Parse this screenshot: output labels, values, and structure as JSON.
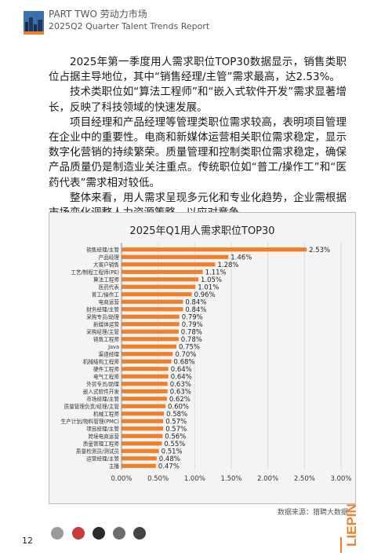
{
  "header": {
    "part_title": "PART TWO 劳动力市场",
    "report_title": "2025Q2 Quarter Talent Trends Report"
  },
  "body": {
    "paragraphs": [
      "2025年第一季度用人需求职位TOP30数据显示，销售类职位占据主导地位，其中“销售经理/主管”需求最高，达2.53%。",
      "技术类职位如“算法工程师”和“嵌入式软件开发”需求显著增长，反映了科技领域的快速发展。",
      "项目经理和产品经理等管理类职位需求较高，表明项目管理在企业中的重要性。电商和新媒体运营相关职位需求稳定，显示数字化营销的持续繁荣。质量管理和控制类职位需求稳定，确保产品质量仍是制造业关注重点。传统职位如“普工/操作工”和“医药代表”需求相对较低。",
      "整体来看，用人需求呈现多元化和专业化趋势，企业需根据市场变化调整人力资源策略，以应对竞争。"
    ]
  },
  "chart_data": {
    "type": "bar",
    "orientation": "horizontal",
    "title": "2025年Q1用人需求职位TOP30",
    "xlim": [
      0,
      3
    ],
    "ticks": [
      0,
      0.5,
      1,
      1.5,
      2,
      2.5,
      3
    ],
    "tick_labels": [
      "0.00%",
      "0.50%",
      "1.00%",
      "1.50%",
      "2.00%",
      "2.50%",
      "3.00%"
    ],
    "grid": true,
    "bar_color": "#f07f2a",
    "categories": [
      "销售经理/主管",
      "产品经理",
      "大客户销售",
      "工艺/制程工程师(PE)",
      "算法工程师",
      "医药代表",
      "普工/操作工",
      "电商运营",
      "财务经理/主管",
      "采购专员/助理",
      "新媒体运营",
      "采购经理/主管",
      "销售工程师",
      "Java",
      "渠道经理",
      "机械结构工程师",
      "硬件工程师",
      "电气工程师",
      "外贸专员/助理",
      "嵌入式软件开发",
      "市场经理/主管",
      "质量管理负责/经理/主管",
      "机械工程师",
      "生产计划/物料管理(PMC)",
      "项目经理/主管",
      "跨境电商运营",
      "质量管理工程师",
      "质量检测员/测试员",
      "运营经理/主管",
      "主播"
    ],
    "values": [
      2.53,
      1.46,
      1.28,
      1.11,
      1.05,
      1.01,
      0.96,
      0.84,
      0.84,
      0.79,
      0.79,
      0.78,
      0.78,
      0.75,
      0.7,
      0.68,
      0.64,
      0.64,
      0.63,
      0.63,
      0.62,
      0.6,
      0.58,
      0.57,
      0.57,
      0.56,
      0.55,
      0.51,
      0.48,
      0.47
    ],
    "value_labels": [
      "2.53%",
      "1.46%",
      "1.28%",
      "1.11%",
      "1.05%",
      "1.01%",
      "0.96%",
      "0.84%",
      "0.84%",
      "0.79%",
      "0.79%",
      "0.78%",
      "0.78%",
      "0.75%",
      "0.70%",
      "0.68%",
      "0.64%",
      "0.64%",
      "0.63%",
      "0.63%",
      "0.62%",
      "0.60%",
      "0.58%",
      "0.57%",
      "0.57%",
      "0.56%",
      "0.55%",
      "0.51%",
      "0.48%",
      "0.47%"
    ]
  },
  "source": "数据来源：猎聘大数据",
  "brand": "LIEPIN",
  "page_number": "12",
  "colors": {
    "accent": "#f07f2a",
    "grid": "#d9d9d9",
    "panel": "#f4f4f4"
  }
}
